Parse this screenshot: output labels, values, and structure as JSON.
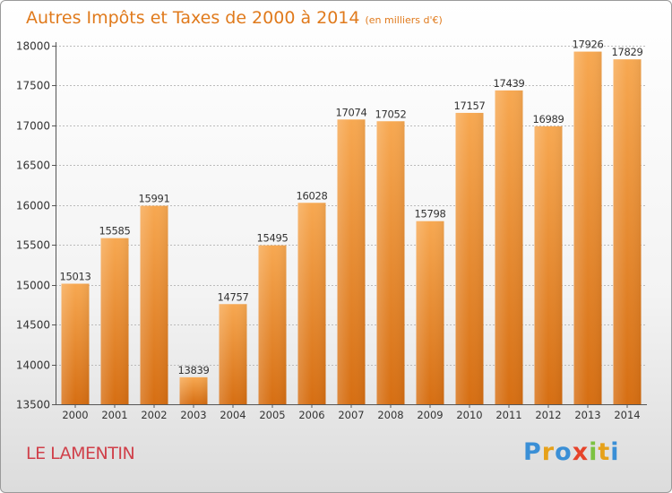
{
  "header": {
    "title": "Autres Impôts et Taxes de 2000 à 2014",
    "subtitle": "(en milliers d'€)"
  },
  "footer": {
    "place": "LE LAMENTIN",
    "brand": "Proxiti"
  },
  "colors": {
    "bar_light": "#f7a851",
    "bar_dark": "#d66e12",
    "title": "#e07a1c",
    "place": "#d0404a",
    "grid": "#bbbbbb"
  },
  "chart_data": {
    "type": "bar",
    "title": "Autres Impôts et Taxes de 2000 à 2014",
    "subtitle": "(en milliers d'€)",
    "xlabel": "",
    "ylabel": "",
    "categories": [
      "2000",
      "2001",
      "2002",
      "2003",
      "2004",
      "2005",
      "2006",
      "2007",
      "2008",
      "2009",
      "2010",
      "2011",
      "2012",
      "2013",
      "2014"
    ],
    "values": [
      15013,
      15585,
      15991,
      13839,
      14757,
      15495,
      16028,
      17074,
      17052,
      15798,
      17157,
      17439,
      16989,
      17926,
      17829
    ],
    "ylim": [
      13500,
      18000
    ],
    "yticks": [
      13500,
      14000,
      14500,
      15000,
      15500,
      16000,
      16500,
      17000,
      17500,
      18000
    ],
    "grid": true,
    "data_labels": true
  }
}
